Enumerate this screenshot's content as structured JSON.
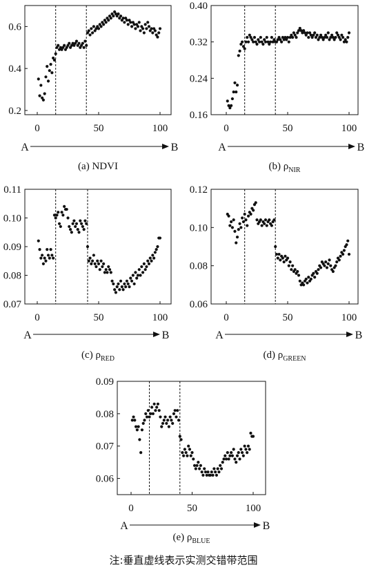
{
  "note": "注:垂直虚线表示实测交错带范围",
  "chart_data": [
    {
      "type": "scatter",
      "caption_prefix": "(a) NDVI",
      "caption_sub": "",
      "xlim": [
        0,
        100
      ],
      "xticks": [
        0,
        50,
        100
      ],
      "ylim": [
        0.18,
        0.7
      ],
      "yticks": [
        0.2,
        0.4,
        0.6
      ],
      "ytick_labels": [
        "0.2",
        "0.4",
        "0.6"
      ],
      "dashed_lines_x": [
        15,
        40
      ],
      "arrow": {
        "start": "A",
        "end": "B"
      },
      "x": [
        1,
        2,
        3,
        4,
        5,
        6,
        7,
        8,
        9,
        10,
        11,
        12,
        13,
        14,
        15,
        16,
        17,
        18,
        19,
        20,
        21,
        22,
        23,
        24,
        25,
        26,
        27,
        28,
        29,
        30,
        31,
        32,
        33,
        34,
        35,
        36,
        37,
        38,
        39,
        40,
        41,
        42,
        43,
        44,
        45,
        46,
        47,
        48,
        49,
        50,
        51,
        52,
        53,
        54,
        55,
        56,
        57,
        58,
        59,
        60,
        61,
        62,
        63,
        64,
        65,
        66,
        67,
        68,
        69,
        70,
        71,
        72,
        73,
        74,
        75,
        76,
        77,
        78,
        79,
        80,
        81,
        82,
        83,
        84,
        85,
        86,
        87,
        88,
        89,
        90,
        91,
        92,
        93,
        94,
        95,
        96,
        97,
        98,
        99,
        100
      ],
      "y": [
        0.35,
        0.27,
        0.32,
        0.26,
        0.25,
        0.28,
        0.36,
        0.41,
        0.34,
        0.39,
        0.42,
        0.38,
        0.45,
        0.44,
        0.47,
        0.5,
        0.51,
        0.49,
        0.5,
        0.49,
        0.5,
        0.51,
        0.49,
        0.5,
        0.51,
        0.52,
        0.5,
        0.51,
        0.52,
        0.51,
        0.52,
        0.53,
        0.51,
        0.52,
        0.5,
        0.51,
        0.52,
        0.5,
        0.53,
        0.51,
        0.57,
        0.58,
        0.56,
        0.59,
        0.57,
        0.6,
        0.58,
        0.59,
        0.6,
        0.59,
        0.61,
        0.6,
        0.62,
        0.61,
        0.63,
        0.62,
        0.64,
        0.63,
        0.65,
        0.64,
        0.66,
        0.65,
        0.67,
        0.66,
        0.65,
        0.66,
        0.64,
        0.65,
        0.63,
        0.64,
        0.62,
        0.64,
        0.63,
        0.61,
        0.63,
        0.62,
        0.6,
        0.62,
        0.61,
        0.59,
        0.61,
        0.6,
        0.62,
        0.58,
        0.6,
        0.59,
        0.57,
        0.61,
        0.59,
        0.62,
        0.6,
        0.58,
        0.59,
        0.57,
        0.59,
        0.58,
        0.56,
        0.55,
        0.57,
        0.59
      ]
    },
    {
      "type": "scatter",
      "caption_prefix": "(b) ρ",
      "caption_sub": "NIR",
      "xlim": [
        0,
        100
      ],
      "xticks": [
        0,
        50,
        100
      ],
      "ylim": [
        0.16,
        0.4
      ],
      "yticks": [
        0.16,
        0.24,
        0.32,
        0.4
      ],
      "ytick_labels": [
        "0.16",
        "0.24",
        "0.32",
        "0.40"
      ],
      "dashed_lines_x": [
        15,
        40
      ],
      "arrow": {
        "start": "A",
        "end": "B"
      },
      "x": [
        1,
        2,
        3,
        4,
        5,
        6,
        7,
        8,
        9,
        10,
        11,
        12,
        13,
        14,
        15,
        16,
        17,
        18,
        19,
        20,
        21,
        22,
        23,
        24,
        25,
        26,
        27,
        28,
        29,
        30,
        31,
        32,
        33,
        34,
        35,
        36,
        37,
        38,
        39,
        40,
        41,
        42,
        43,
        44,
        45,
        46,
        47,
        48,
        49,
        50,
        51,
        52,
        53,
        54,
        55,
        56,
        57,
        58,
        59,
        60,
        61,
        62,
        63,
        64,
        65,
        66,
        67,
        68,
        69,
        70,
        71,
        72,
        73,
        74,
        75,
        76,
        77,
        78,
        79,
        80,
        81,
        82,
        83,
        84,
        85,
        86,
        87,
        88,
        89,
        90,
        91,
        92,
        93,
        94,
        95,
        96,
        97,
        98,
        99,
        100
      ],
      "y": [
        0.19,
        0.18,
        0.175,
        0.18,
        0.195,
        0.21,
        0.23,
        0.21,
        0.225,
        0.29,
        0.3,
        0.315,
        0.32,
        0.31,
        0.305,
        0.32,
        0.33,
        0.32,
        0.335,
        0.33,
        0.325,
        0.32,
        0.33,
        0.32,
        0.315,
        0.325,
        0.32,
        0.33,
        0.32,
        0.315,
        0.325,
        0.32,
        0.33,
        0.32,
        0.315,
        0.32,
        0.33,
        0.32,
        0.325,
        0.32,
        0.32,
        0.325,
        0.33,
        0.325,
        0.32,
        0.33,
        0.325,
        0.33,
        0.325,
        0.33,
        0.32,
        0.33,
        0.335,
        0.33,
        0.34,
        0.335,
        0.33,
        0.34,
        0.345,
        0.35,
        0.345,
        0.34,
        0.345,
        0.34,
        0.335,
        0.34,
        0.33,
        0.34,
        0.335,
        0.33,
        0.335,
        0.34,
        0.33,
        0.335,
        0.325,
        0.33,
        0.335,
        0.33,
        0.325,
        0.33,
        0.335,
        0.33,
        0.34,
        0.325,
        0.33,
        0.335,
        0.33,
        0.325,
        0.33,
        0.34,
        0.335,
        0.33,
        0.325,
        0.335,
        0.33,
        0.32,
        0.325,
        0.32,
        0.33,
        0.34
      ]
    },
    {
      "type": "scatter",
      "caption_prefix": "(c) ρ",
      "caption_sub": "RED",
      "xlim": [
        0,
        100
      ],
      "xticks": [
        0,
        50,
        100
      ],
      "ylim": [
        0.07,
        0.11
      ],
      "yticks": [
        0.07,
        0.08,
        0.09,
        0.1,
        0.11
      ],
      "ytick_labels": [
        "0.07",
        "0.08",
        "0.09",
        "0.10",
        "0.11"
      ],
      "dashed_lines_x": [
        15,
        41
      ],
      "arrow": {
        "start": "A",
        "end": "B"
      },
      "x": [
        1,
        2,
        3,
        4,
        5,
        6,
        7,
        8,
        9,
        10,
        11,
        12,
        13,
        14,
        15,
        16,
        17,
        18,
        19,
        20,
        21,
        22,
        23,
        24,
        25,
        26,
        27,
        28,
        29,
        30,
        31,
        32,
        33,
        34,
        35,
        36,
        37,
        38,
        39,
        40,
        41,
        42,
        43,
        44,
        45,
        46,
        47,
        48,
        49,
        50,
        51,
        52,
        53,
        54,
        55,
        56,
        57,
        58,
        59,
        60,
        61,
        62,
        63,
        64,
        65,
        66,
        67,
        68,
        69,
        70,
        71,
        72,
        73,
        74,
        75,
        76,
        77,
        78,
        79,
        80,
        81,
        82,
        83,
        84,
        85,
        86,
        87,
        88,
        89,
        90,
        91,
        92,
        93,
        94,
        95,
        96,
        97,
        98,
        99,
        100
      ],
      "y": [
        0.092,
        0.089,
        0.086,
        0.087,
        0.084,
        0.086,
        0.085,
        0.089,
        0.087,
        0.086,
        0.089,
        0.087,
        0.086,
        0.101,
        0.1,
        0.101,
        0.102,
        0.098,
        0.097,
        0.102,
        0.101,
        0.104,
        0.103,
        0.103,
        0.1,
        0.097,
        0.096,
        0.095,
        0.098,
        0.099,
        0.097,
        0.098,
        0.096,
        0.095,
        0.099,
        0.098,
        0.097,
        0.096,
        0.099,
        0.098,
        0.09,
        0.085,
        0.086,
        0.084,
        0.085,
        0.087,
        0.084,
        0.083,
        0.085,
        0.084,
        0.082,
        0.085,
        0.083,
        0.084,
        0.081,
        0.082,
        0.081,
        0.083,
        0.082,
        0.081,
        0.078,
        0.077,
        0.075,
        0.074,
        0.076,
        0.077,
        0.075,
        0.078,
        0.076,
        0.075,
        0.077,
        0.076,
        0.078,
        0.077,
        0.076,
        0.079,
        0.078,
        0.08,
        0.077,
        0.081,
        0.079,
        0.08,
        0.082,
        0.08,
        0.083,
        0.081,
        0.084,
        0.082,
        0.083,
        0.085,
        0.084,
        0.086,
        0.085,
        0.087,
        0.086,
        0.088,
        0.089,
        0.09,
        0.093,
        0.093
      ]
    },
    {
      "type": "scatter",
      "caption_prefix": "(d) ρ",
      "caption_sub": "GREEN",
      "xlim": [
        0,
        100
      ],
      "xticks": [
        0,
        50,
        100
      ],
      "ylim": [
        0.06,
        0.12
      ],
      "yticks": [
        0.06,
        0.08,
        0.1,
        0.12
      ],
      "ytick_labels": [
        "0.06",
        "0.08",
        "0.10",
        "0.12"
      ],
      "dashed_lines_x": [
        15,
        40
      ],
      "arrow": {
        "start": "A",
        "end": "B"
      },
      "x": [
        1,
        2,
        3,
        4,
        5,
        6,
        7,
        8,
        9,
        10,
        11,
        12,
        13,
        14,
        15,
        16,
        17,
        18,
        19,
        20,
        21,
        22,
        23,
        24,
        25,
        26,
        27,
        28,
        29,
        30,
        31,
        32,
        33,
        34,
        35,
        36,
        37,
        38,
        39,
        40,
        41,
        42,
        43,
        44,
        45,
        46,
        47,
        48,
        49,
        50,
        51,
        52,
        53,
        54,
        55,
        56,
        57,
        58,
        59,
        60,
        61,
        62,
        63,
        64,
        65,
        66,
        67,
        68,
        69,
        70,
        71,
        72,
        73,
        74,
        75,
        76,
        77,
        78,
        79,
        80,
        81,
        82,
        83,
        84,
        85,
        86,
        87,
        88,
        89,
        90,
        91,
        92,
        93,
        94,
        95,
        96,
        97,
        98,
        99,
        100
      ],
      "y": [
        0.107,
        0.106,
        0.101,
        0.103,
        0.1,
        0.104,
        0.098,
        0.092,
        0.095,
        0.099,
        0.102,
        0.1,
        0.105,
        0.103,
        0.107,
        0.104,
        0.101,
        0.106,
        0.108,
        0.107,
        0.11,
        0.109,
        0.112,
        0.113,
        0.104,
        0.102,
        0.103,
        0.104,
        0.101,
        0.103,
        0.102,
        0.104,
        0.101,
        0.103,
        0.104,
        0.102,
        0.101,
        0.103,
        0.104,
        0.09,
        0.086,
        0.084,
        0.086,
        0.083,
        0.085,
        0.084,
        0.082,
        0.085,
        0.083,
        0.084,
        0.08,
        0.082,
        0.078,
        0.08,
        0.077,
        0.078,
        0.076,
        0.077,
        0.075,
        0.072,
        0.07,
        0.071,
        0.07,
        0.072,
        0.073,
        0.071,
        0.074,
        0.072,
        0.073,
        0.075,
        0.076,
        0.074,
        0.077,
        0.076,
        0.078,
        0.08,
        0.079,
        0.082,
        0.081,
        0.08,
        0.082,
        0.079,
        0.081,
        0.083,
        0.08,
        0.078,
        0.077,
        0.079,
        0.08,
        0.082,
        0.084,
        0.083,
        0.085,
        0.087,
        0.086,
        0.088,
        0.09,
        0.091,
        0.093,
        0.086
      ]
    },
    {
      "type": "scatter",
      "caption_prefix": "(e) ρ",
      "caption_sub": "BLUE",
      "xlim": [
        0,
        100
      ],
      "xticks": [
        0,
        50,
        100
      ],
      "ylim": [
        0.055,
        0.09
      ],
      "yticks": [
        0.06,
        0.07,
        0.08,
        0.09
      ],
      "ytick_labels": [
        "0.06",
        "0.07",
        "0.08",
        "0.09"
      ],
      "dashed_lines_x": [
        15,
        40
      ],
      "arrow": {
        "start": "A",
        "end": "B"
      },
      "x": [
        1,
        2,
        3,
        4,
        5,
        6,
        7,
        8,
        9,
        10,
        11,
        12,
        13,
        14,
        15,
        16,
        17,
        18,
        19,
        20,
        21,
        22,
        23,
        24,
        25,
        26,
        27,
        28,
        29,
        30,
        31,
        32,
        33,
        34,
        35,
        36,
        37,
        38,
        39,
        40,
        41,
        42,
        43,
        44,
        45,
        46,
        47,
        48,
        49,
        50,
        51,
        52,
        53,
        54,
        55,
        56,
        57,
        58,
        59,
        60,
        61,
        62,
        63,
        64,
        65,
        66,
        67,
        68,
        69,
        70,
        71,
        72,
        73,
        74,
        75,
        76,
        77,
        78,
        79,
        80,
        81,
        82,
        83,
        84,
        85,
        86,
        87,
        88,
        89,
        90,
        91,
        92,
        93,
        94,
        95,
        96,
        97,
        98,
        99,
        100
      ],
      "y": [
        0.078,
        0.079,
        0.078,
        0.076,
        0.075,
        0.076,
        0.072,
        0.068,
        0.075,
        0.077,
        0.078,
        0.08,
        0.079,
        0.081,
        0.079,
        0.08,
        0.082,
        0.08,
        0.083,
        0.081,
        0.082,
        0.083,
        0.081,
        0.079,
        0.076,
        0.077,
        0.078,
        0.079,
        0.077,
        0.078,
        0.076,
        0.079,
        0.078,
        0.077,
        0.08,
        0.081,
        0.079,
        0.081,
        0.078,
        0.073,
        0.072,
        0.068,
        0.067,
        0.069,
        0.068,
        0.067,
        0.07,
        0.069,
        0.067,
        0.068,
        0.066,
        0.064,
        0.063,
        0.064,
        0.065,
        0.063,
        0.064,
        0.062,
        0.061,
        0.063,
        0.062,
        0.061,
        0.062,
        0.061,
        0.061,
        0.062,
        0.061,
        0.063,
        0.062,
        0.061,
        0.063,
        0.062,
        0.064,
        0.063,
        0.065,
        0.066,
        0.067,
        0.066,
        0.068,
        0.066,
        0.067,
        0.068,
        0.067,
        0.069,
        0.066,
        0.065,
        0.067,
        0.068,
        0.066,
        0.069,
        0.068,
        0.067,
        0.07,
        0.069,
        0.068,
        0.07,
        0.069,
        0.074,
        0.073,
        0.073
      ]
    }
  ]
}
